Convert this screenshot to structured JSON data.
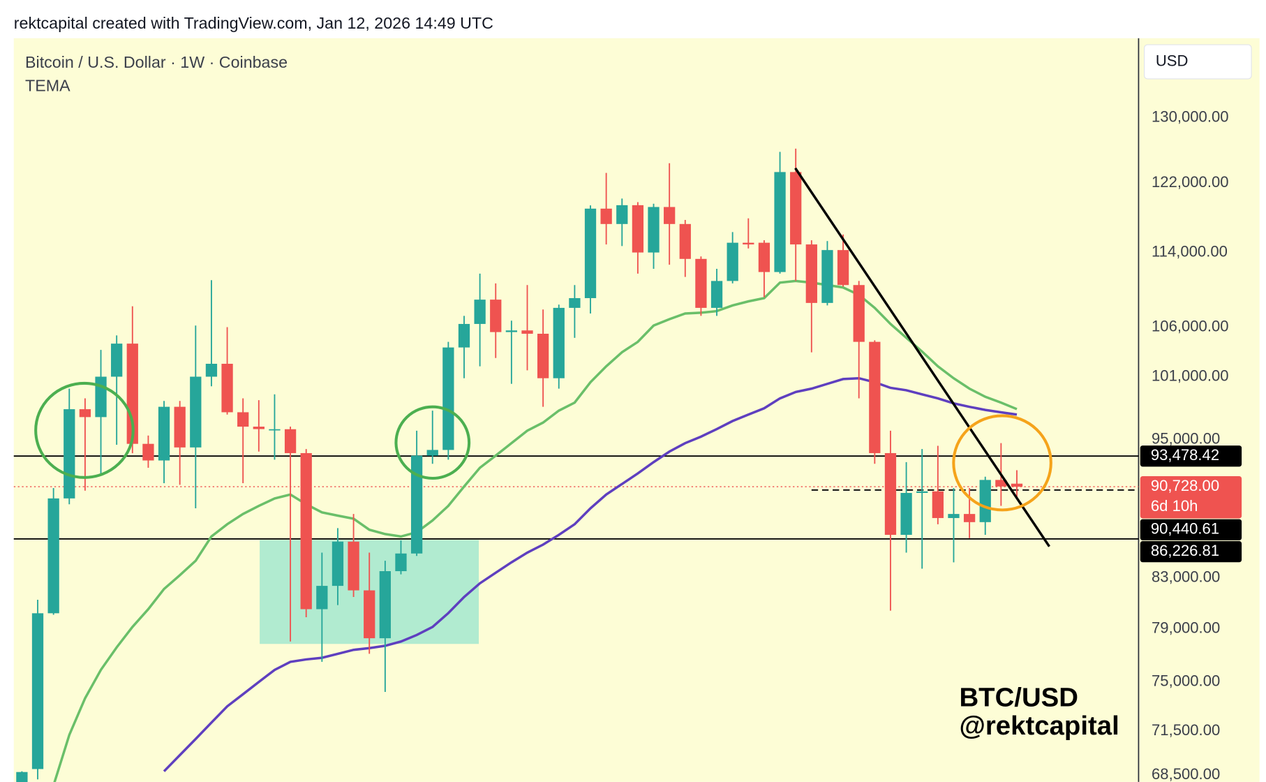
{
  "chart_data": {
    "type": "candlestick",
    "attribution": "rektcapital created with TradingView.com, Jan 12, 2026 14:49 UTC",
    "title": "Bitcoin / U.S. Dollar · 1W · Coinbase",
    "indicator": "TEMA",
    "currency": "USD",
    "watermark": [
      "BTC/USD",
      "@rektcapital"
    ],
    "log_scale": true,
    "ylim": [
      68040,
      140480
    ],
    "yticks": [
      {
        "value": 130000,
        "label": "130,000.00"
      },
      {
        "value": 122000,
        "label": "122,000.00"
      },
      {
        "value": 114000,
        "label": "114,000.00"
      },
      {
        "value": 106000,
        "label": "106,000.00"
      },
      {
        "value": 101000,
        "label": "101,000.00"
      },
      {
        "value": 95000,
        "label": "95,000.00"
      },
      {
        "value": 83000,
        "label": "83,000.00"
      },
      {
        "value": 79000,
        "label": "79,000.00"
      },
      {
        "value": 75000,
        "label": "75,000.00"
      },
      {
        "value": 71500,
        "label": "71,500.00"
      },
      {
        "value": 68500,
        "label": "68,500.00"
      }
    ],
    "up_color": "#26a69a",
    "down_color": "#ef5350",
    "open": [
      67800,
      68900,
      80200,
      89700,
      97850,
      97100,
      101000,
      104310,
      94600,
      93080,
      98080,
      94270,
      101000,
      102280,
      97560,
      96200,
      95880,
      95960,
      93750,
      80520,
      82370,
      86000,
      82010,
      78270,
      83560,
      85010,
      93520,
      94040,
      103920,
      106330,
      108880,
      105490,
      105660,
      105320,
      100850,
      108010,
      109040,
      118980,
      117210,
      119380,
      114000,
      119170,
      117210,
      113290,
      108010,
      110880,
      115090,
      115090,
      111850,
      123300,
      114900,
      108530,
      114270,
      110440,
      104490,
      93750,
      86570,
      90180,
      90320,
      88000,
      88350,
      87650,
      91330,
      91000
    ],
    "high": [
      68750,
      81260,
      90610,
      99830,
      98890,
      103670,
      105150,
      108180,
      95370,
      98640,
      98640,
      106160,
      110970,
      106000,
      98890,
      98720,
      99280,
      96200,
      94120,
      85080,
      87140,
      88350,
      85080,
      84410,
      86100,
      95820,
      97710,
      104490,
      107170,
      111680,
      110620,
      106670,
      110440,
      107840,
      108350,
      110440,
      119360,
      123200,
      120150,
      119740,
      119550,
      124370,
      117680,
      113560,
      112200,
      116290,
      117860,
      115370,
      125750,
      126150,
      115370,
      115280,
      116020,
      110880,
      104650,
      95820,
      92930,
      94120,
      94420,
      90610,
      90610,
      91620,
      94670,
      92200
    ],
    "low": [
      67700,
      68210,
      80080,
      89190,
      90380,
      91690,
      94520,
      93740,
      92420,
      91040,
      90900,
      88840,
      100060,
      97340,
      91040,
      93890,
      93150,
      78020,
      79890,
      76490,
      80840,
      81480,
      77090,
      74280,
      83300,
      84810,
      92780,
      93150,
      100850,
      102030,
      102860,
      100300,
      101630,
      98080,
      99830,
      104900,
      107420,
      114900,
      114720,
      111680,
      112200,
      112650,
      111320,
      107170,
      107170,
      110620,
      114450,
      109130,
      111680,
      110880,
      103430,
      108270,
      110270,
      98890,
      92780,
      80400,
      85080,
      83760,
      87470,
      84280,
      86290,
      86570,
      89050,
      89620
    ],
    "close": [
      68700,
      80200,
      89700,
      97850,
      97100,
      101000,
      104310,
      94600,
      93080,
      98080,
      94270,
      101000,
      102280,
      97560,
      96200,
      95970,
      95960,
      93750,
      80520,
      82370,
      86000,
      82010,
      78270,
      83560,
      85010,
      93520,
      94040,
      103920,
      106330,
      108880,
      105490,
      105660,
      105320,
      100850,
      108010,
      109040,
      118980,
      117210,
      119380,
      114000,
      119170,
      117210,
      113290,
      108010,
      110880,
      115090,
      114900,
      111850,
      123300,
      114900,
      108530,
      114270,
      110440,
      104490,
      93750,
      86570,
      90180,
      90320,
      88000,
      88350,
      87650,
      91330,
      90750,
      90728
    ],
    "lines": [
      {
        "color": "#6abf69",
        "values": [
          null,
          null,
          67800,
          71230,
          73820,
          75890,
          77580,
          79140,
          80520,
          82120,
          83230,
          84410,
          86430,
          87470,
          88350,
          89050,
          89690,
          90040,
          89190,
          88490,
          88210,
          87940,
          87000,
          86640,
          86430,
          86790,
          87800,
          89050,
          90750,
          92420,
          93520,
          94670,
          95820,
          96580,
          97710,
          98480,
          100460,
          102030,
          103440,
          104490,
          106160,
          106830,
          107420,
          107500,
          107670,
          108270,
          108700,
          109040,
          110700,
          110880,
          110700,
          110440,
          110180,
          109390,
          108010,
          106330,
          104900,
          103510,
          102030,
          100850,
          99830,
          99040,
          98480,
          97860
        ]
      },
      {
        "color": "#5e3fbf",
        "values": [
          null,
          null,
          null,
          null,
          null,
          null,
          null,
          null,
          null,
          68750,
          69840,
          70950,
          72090,
          73240,
          74110,
          75000,
          75890,
          76490,
          76670,
          76790,
          77090,
          77390,
          77520,
          77700,
          78020,
          78520,
          79140,
          80210,
          81480,
          82570,
          83430,
          84280,
          85080,
          85750,
          86570,
          87470,
          88840,
          90040,
          90970,
          91910,
          92930,
          93890,
          94670,
          95270,
          95970,
          96730,
          97340,
          97940,
          98890,
          99510,
          99830,
          100300,
          100770,
          100850,
          100460,
          99910,
          99670,
          99280,
          98890,
          98410,
          98080,
          97780,
          97560,
          97340
        ]
      }
    ],
    "price_levels": [
      {
        "value": 93478.42,
        "label": "93,478.42",
        "color": "#000000",
        "style": "solid"
      },
      {
        "value": 90728,
        "label": "90,728.00",
        "color": "#ef5350",
        "style": "dotted",
        "countdown": "6d 10h"
      },
      {
        "value": 90440.61,
        "label": "90,440.61",
        "color": "#000000",
        "style": "dashed"
      },
      {
        "value": 86226.81,
        "label": "86,226.81",
        "color": "#000000",
        "style": "solid"
      }
    ]
  }
}
